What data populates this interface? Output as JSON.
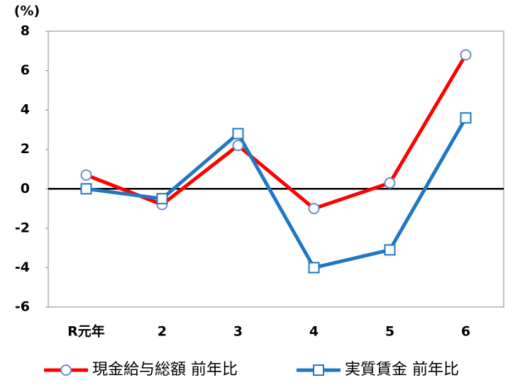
{
  "chart_data": {
    "type": "line",
    "y_label": "(%)",
    "categories": [
      "R元年",
      "2",
      "3",
      "4",
      "5",
      "6"
    ],
    "series": [
      {
        "name": "現金給与総額 前年比",
        "color": "#ff0000",
        "marker": "circle",
        "values": [
          0.7,
          -0.8,
          2.2,
          -1.0,
          0.3,
          6.8
        ]
      },
      {
        "name": "実質賃金 前年比",
        "color": "#1f77c4",
        "marker": "square",
        "values": [
          0.0,
          -0.5,
          2.8,
          -4.0,
          -3.1,
          3.6
        ]
      }
    ],
    "ylim": [
      -6,
      8
    ],
    "yticks": [
      -6,
      -4,
      -2,
      0,
      2,
      4,
      6,
      8
    ],
    "grid": false,
    "legend": "bottom"
  }
}
